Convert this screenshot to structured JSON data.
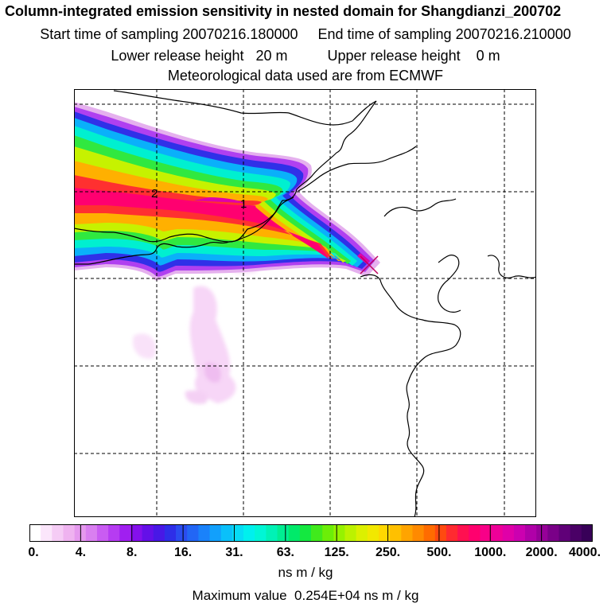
{
  "header": {
    "title": "Column-integrated emission sensitivity in nested domain for Shangdianzi_200702",
    "sampling_line": "Start time of sampling 20070216.180000     End time of sampling 20070216.210000",
    "release_line": "Lower release height   20 m          Upper release height    0 m",
    "met_line": "Meteorological data used are from ECMWF"
  },
  "map": {
    "grid_labels": [
      "2",
      "1"
    ],
    "release_marker": "x-marker-icon"
  },
  "legend": {
    "tick_labels": [
      "0.",
      "4.",
      "8.",
      "16.",
      "31.",
      "63.",
      "125.",
      "250.",
      "500.",
      "1000.",
      "2000.",
      "4000."
    ],
    "colors": [
      "#ffffff",
      "#fbe6fb",
      "#f5ccf5",
      "#efb3f0",
      "#e599ee",
      "#d97ff0",
      "#c95cf2",
      "#b63cf2",
      "#a01ff0",
      "#8410ec",
      "#6410e8",
      "#4818e6",
      "#2e2ee8",
      "#2a4cf0",
      "#2266f5",
      "#1a82fa",
      "#12a0fc",
      "#0ac0fa",
      "#06dcf6",
      "#00f0ee",
      "#00f6d6",
      "#00f2b6",
      "#00ee92",
      "#00ea6a",
      "#14e840",
      "#40ea1c",
      "#6cee08",
      "#96f200",
      "#bcf200",
      "#dcf000",
      "#f2e800",
      "#ffd800",
      "#ffc000",
      "#ffa400",
      "#ff8a00",
      "#ff6c00",
      "#ff4a10",
      "#ff2a30",
      "#ff1050",
      "#ff006e",
      "#f80088",
      "#ee0098",
      "#e000a8",
      "#cc00b0",
      "#b000a8",
      "#960098",
      "#7a0088",
      "#600078",
      "#4a0066",
      "#380058"
    ],
    "units": "ns m / kg",
    "max_value": "Maximum value  0.254E+04 ns m / kg"
  }
}
